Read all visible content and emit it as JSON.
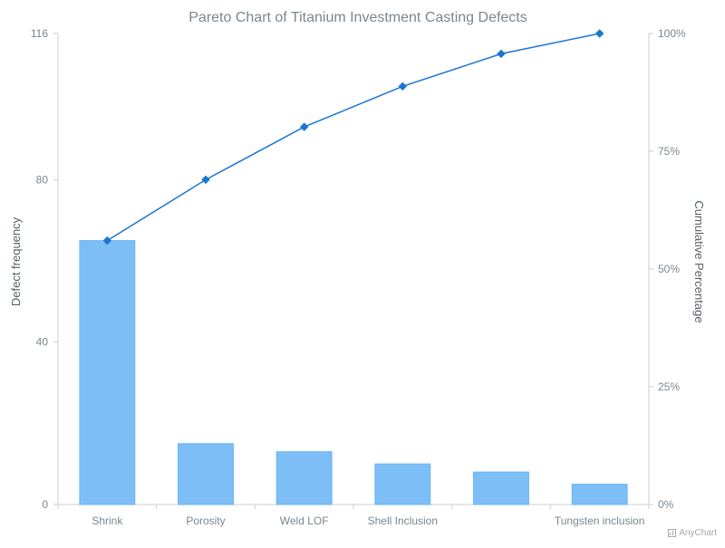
{
  "chart_data": {
    "type": "bar",
    "title": "Pareto Chart of Titanium Investment Casting Defects",
    "categories": [
      "Shrink",
      "Porosity",
      "Weld LOF",
      "Shell Inclusion",
      "",
      "Tungsten inclusion"
    ],
    "series": [
      {
        "values": [
          65,
          15,
          13,
          10,
          8,
          5
        ],
        "color": "#7ebef7"
      },
      {
        "values": [
          56.03,
          68.97,
          80.17,
          88.79,
          95.69,
          100
        ],
        "color": "#1976d2"
      }
    ],
    "ylabel": "Defect frequency",
    "ylim": [
      0,
      116
    ],
    "yticks": [
      "0",
      "40",
      "80",
      "116"
    ],
    "y2label": "Cumulative Percentage",
    "y2lim": [
      0,
      100
    ],
    "y2ticks": [
      "0%",
      "25%",
      "50%",
      "75%",
      "100%"
    ],
    "grid": false
  },
  "credits": {
    "label": "AnyChart"
  },
  "colors": {
    "bar": "#7ebef7",
    "bar_stroke": "#64b5f6",
    "line": "#1976d2",
    "axis": "#cecece",
    "text": "#7c868e"
  }
}
